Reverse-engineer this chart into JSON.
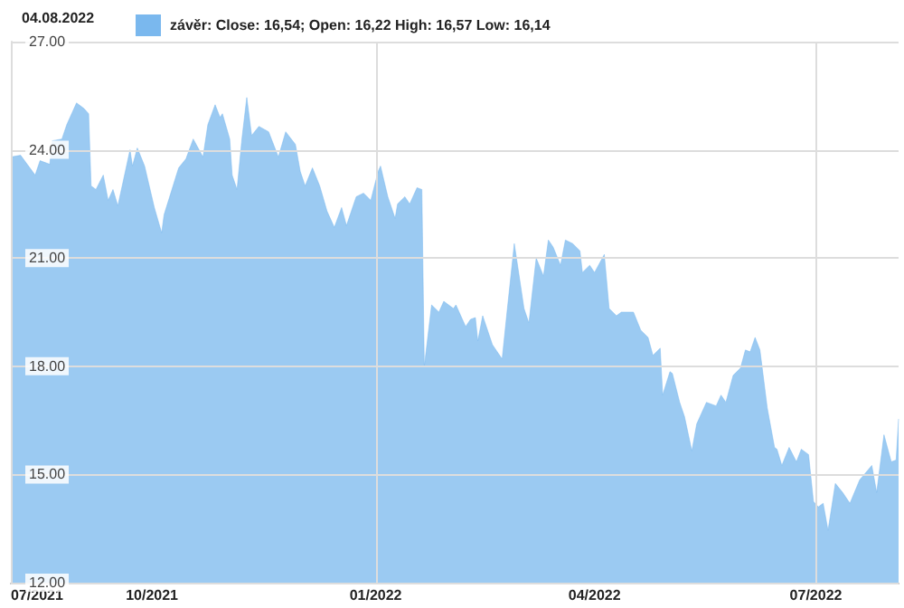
{
  "chart_data": {
    "type": "area",
    "annotations": [
      "04.08.2022"
    ],
    "xlim": [
      "2021-08-04",
      "2022-08-04"
    ],
    "xticks": [
      {
        "value": "2021-08-04",
        "label": "07/2021"
      },
      {
        "value": "2021-10-01",
        "label": "10/2021"
      },
      {
        "value": "2022-01-01",
        "label": "01/2022"
      },
      {
        "value": "2022-04-01",
        "label": "04/2022"
      },
      {
        "value": "2022-07-01",
        "label": "07/2022"
      }
    ],
    "ylim": [
      12,
      27
    ],
    "yticks": [
      {
        "value": 12,
        "label": "12.00"
      },
      {
        "value": 15,
        "label": "15.00"
      },
      {
        "value": 18,
        "label": "18.00"
      },
      {
        "value": 21,
        "label": "21.00"
      },
      {
        "value": 24,
        "label": "24.00"
      },
      {
        "value": 27,
        "label": "27.00"
      }
    ],
    "grid": "y",
    "legend": "top",
    "ref_lines": [
      {
        "axis": "x",
        "value": "2022-01-01",
        "label": null,
        "color": "#dddddd"
      },
      {
        "axis": "x",
        "value": "2022-07-01",
        "label": null,
        "color": "#dddddd"
      }
    ],
    "x": [
      "2021-08-04",
      "2021-08-08",
      "2021-08-14",
      "2021-08-16",
      "2021-08-20",
      "2021-08-21",
      "2021-08-25",
      "2021-08-27",
      "2021-08-31",
      "2021-09-03",
      "2021-09-05",
      "2021-09-06",
      "2021-09-08",
      "2021-09-11",
      "2021-09-13",
      "2021-09-15",
      "2021-09-17",
      "2021-09-22",
      "2021-09-23",
      "2021-09-25",
      "2021-09-28",
      "2021-10-02",
      "2021-10-05",
      "2021-10-06",
      "2021-10-12",
      "2021-10-15",
      "2021-10-18",
      "2021-10-22",
      "2021-10-24",
      "2021-10-27",
      "2021-10-29",
      "2021-10-30",
      "2021-11-02",
      "2021-11-03",
      "2021-11-05",
      "2021-11-07",
      "2021-11-09",
      "2021-11-11",
      "2021-11-14",
      "2021-11-18",
      "2021-11-22",
      "2021-11-25",
      "2021-11-29",
      "2021-12-01",
      "2021-12-03",
      "2021-12-06",
      "2021-12-09",
      "2021-12-12",
      "2021-12-15",
      "2021-12-18",
      "2021-12-20",
      "2021-12-24",
      "2021-12-27",
      "2021-12-30",
      "2022-01-02",
      "2022-01-03",
      "2022-01-06",
      "2022-01-09",
      "2022-01-10",
      "2022-01-13",
      "2022-01-15",
      "2022-01-18",
      "2022-01-20",
      "2022-01-21",
      "2022-01-24",
      "2022-01-27",
      "2022-01-29",
      "2022-02-02",
      "2022-02-03",
      "2022-02-07",
      "2022-02-09",
      "2022-02-11",
      "2022-02-12",
      "2022-02-14",
      "2022-02-18",
      "2022-02-22",
      "2022-02-24",
      "2022-02-27",
      "2022-03-03",
      "2022-03-05",
      "2022-03-08",
      "2022-03-11",
      "2022-03-13",
      "2022-03-15",
      "2022-03-18",
      "2022-03-20",
      "2022-03-23",
      "2022-03-26",
      "2022-03-27",
      "2022-03-30",
      "2022-04-01",
      "2022-04-05",
      "2022-04-07",
      "2022-04-10",
      "2022-04-12",
      "2022-04-17",
      "2022-04-20",
      "2022-04-23",
      "2022-04-25",
      "2022-04-28",
      "2022-04-29",
      "2022-05-02",
      "2022-05-03",
      "2022-05-06",
      "2022-05-08",
      "2022-05-11",
      "2022-05-13",
      "2022-05-17",
      "2022-05-21",
      "2022-05-23",
      "2022-05-25",
      "2022-05-28",
      "2022-05-31",
      "2022-06-02",
      "2022-06-04",
      "2022-06-06",
      "2022-06-08",
      "2022-06-11",
      "2022-06-14",
      "2022-06-15",
      "2022-06-17",
      "2022-06-20",
      "2022-06-23",
      "2022-06-25",
      "2022-06-28",
      "2022-06-30",
      "2022-07-02",
      "2022-07-04",
      "2022-07-06",
      "2022-07-09",
      "2022-07-12",
      "2022-07-15",
      "2022-07-19",
      "2022-07-24",
      "2022-07-26",
      "2022-07-29",
      "2022-08-01",
      "2022-08-03",
      "2022-08-04"
    ],
    "series": [
      {
        "name": "závěr: Close: 16,54; Open: 16,22 High: 16,57 Low: 16,14",
        "color": "#7ab8ee",
        "values": [
          23.8,
          23.85,
          23.3,
          23.7,
          23.6,
          24.25,
          24.3,
          24.7,
          25.3,
          25.15,
          25.0,
          23.0,
          22.9,
          23.3,
          22.6,
          22.9,
          22.45,
          24.0,
          23.55,
          24.05,
          23.55,
          22.4,
          21.7,
          22.2,
          23.5,
          23.75,
          24.3,
          23.8,
          24.7,
          25.25,
          24.9,
          25.0,
          24.3,
          23.3,
          22.9,
          24.3,
          25.45,
          24.4,
          24.65,
          24.5,
          23.8,
          24.5,
          24.15,
          23.4,
          23.0,
          23.5,
          23.0,
          22.3,
          21.85,
          22.4,
          21.9,
          22.7,
          22.8,
          22.6,
          23.4,
          23.55,
          22.7,
          22.1,
          22.5,
          22.7,
          22.5,
          22.95,
          22.9,
          18.0,
          19.7,
          19.5,
          19.8,
          19.6,
          19.7,
          19.1,
          19.3,
          19.35,
          18.7,
          19.4,
          18.6,
          18.2,
          19.5,
          21.4,
          19.6,
          19.2,
          21.0,
          20.5,
          21.5,
          21.3,
          20.8,
          21.5,
          21.4,
          21.2,
          20.6,
          20.8,
          20.6,
          21.1,
          19.6,
          19.4,
          19.5,
          19.5,
          19.0,
          18.8,
          18.3,
          18.5,
          17.2,
          17.85,
          17.8,
          17.0,
          16.6,
          15.65,
          16.4,
          17.0,
          16.9,
          17.2,
          17.0,
          17.75,
          17.95,
          18.45,
          18.4,
          18.8,
          18.45,
          16.85,
          15.75,
          15.7,
          15.25,
          15.75,
          15.35,
          15.7,
          15.55,
          14.25,
          14.1,
          14.2,
          13.45,
          14.75,
          14.5,
          14.2,
          14.85,
          15.25,
          14.5,
          16.1,
          15.35,
          15.4,
          16.54
        ]
      }
    ]
  }
}
